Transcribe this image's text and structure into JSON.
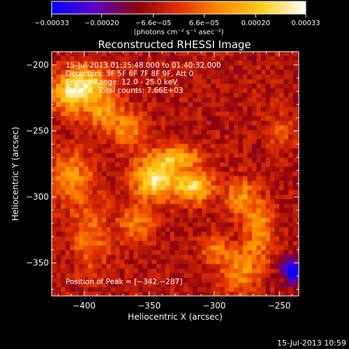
{
  "chart_data": {
    "type": "heatmap",
    "title": "Reconstructed RHESSI Image",
    "xlabel": "Heliocentric X (arcsec)",
    "ylabel": "Heliocentric Y (arcsec)",
    "xlim": [
      -425,
      -235
    ],
    "ylim": [
      -375,
      -190
    ],
    "x_ticks": [
      -400,
      -350,
      -300,
      -250
    ],
    "y_ticks": [
      -200,
      -250,
      -300,
      -350
    ],
    "x_tick_labels": [
      "−400",
      "−350",
      "−300",
      "−250"
    ],
    "y_tick_labels": [
      "−200",
      "−250",
      "−300",
      "−350"
    ],
    "colorbar": {
      "range": [
        -0.00033,
        0.00033
      ],
      "ticks": [
        -0.00033,
        -0.0002,
        -6.6e-05,
        6.6e-05,
        0.0002,
        0.00033
      ],
      "tick_labels": [
        "−0.00033",
        "−0.00020",
        "−6.6e−05",
        "6.6e−05",
        "0.00020",
        "0.00033"
      ],
      "units_label": "(photons cm⁻² s⁻¹ asec⁻²)",
      "colors": [
        "#0000ff",
        "#5a00c8",
        "#8a0010",
        "#e03000",
        "#ff8c00",
        "#ffd020",
        "#ffffff"
      ]
    },
    "annotations": {
      "time_range": "15-Jul-2013 01:35:48.000 to 01:40:32.000",
      "detectors": "Detectors: 3F 5F 6F 7F 8F 9F, Att 0",
      "energy_range": "Energy Range: 12.0 - 25.0 keV",
      "clean": "Clean     Total counts: 7.66E+03",
      "peak": "Position of Peak = [−342,−287]"
    },
    "peak_position": [
      -342,
      -287
    ],
    "sources": [
      {
        "x": -345,
        "y": -287,
        "sx": 12,
        "sy": 10,
        "amp": 1.0
      },
      {
        "x": -315,
        "y": -292,
        "sx": 10,
        "sy": 8,
        "amp": 0.9
      },
      {
        "x": -330,
        "y": -270,
        "sx": 14,
        "sy": 6,
        "amp": 0.7
      },
      {
        "x": -410,
        "y": -222,
        "sx": 12,
        "sy": 10,
        "amp": 0.85
      },
      {
        "x": -395,
        "y": -212,
        "sx": 12,
        "sy": 8,
        "amp": 0.6
      },
      {
        "x": -385,
        "y": -235,
        "sx": 10,
        "sy": 10,
        "amp": 0.55
      },
      {
        "x": -365,
        "y": -250,
        "sx": 10,
        "sy": 10,
        "amp": 0.5
      },
      {
        "x": -410,
        "y": -285,
        "sx": 12,
        "sy": 14,
        "amp": 0.55
      },
      {
        "x": -395,
        "y": -330,
        "sx": 10,
        "sy": 18,
        "amp": 0.45
      },
      {
        "x": -360,
        "y": -320,
        "sx": 10,
        "sy": 10,
        "amp": 0.45
      },
      {
        "x": -280,
        "y": -300,
        "sx": 8,
        "sy": 10,
        "amp": 0.55
      },
      {
        "x": -265,
        "y": -325,
        "sx": 8,
        "sy": 16,
        "amp": 0.55
      },
      {
        "x": -280,
        "y": -355,
        "sx": 10,
        "sy": 12,
        "amp": 0.55
      },
      {
        "x": -300,
        "y": -340,
        "sx": 8,
        "sy": 8,
        "amp": 0.4
      },
      {
        "x": -250,
        "y": -250,
        "sx": 8,
        "sy": 10,
        "amp": 0.3
      },
      {
        "x": -240,
        "y": -355,
        "sx": 6,
        "sy": 6,
        "amp": -0.9
      }
    ],
    "background_level": -0.2,
    "grid": false
  },
  "footer": {
    "timestamp": "15-Jul-2013 10:59"
  }
}
